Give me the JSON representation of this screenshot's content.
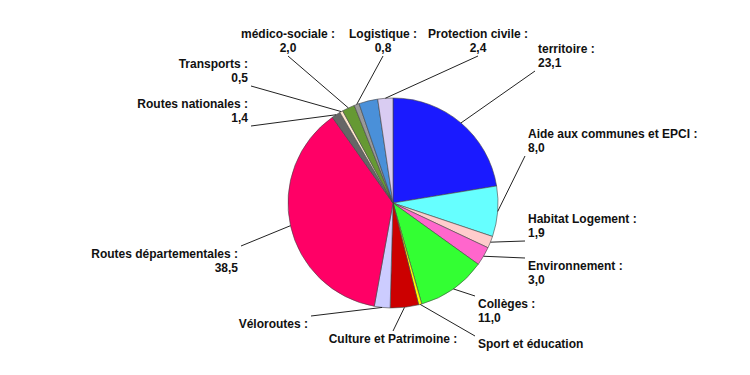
{
  "chart_data": {
    "type": "pie",
    "categories": [
      "territoire :",
      "Aide aux communes et EPCI :",
      "Habitat Logement :",
      "Environnement :",
      "Collèges :",
      "Sport et éducation",
      "Culture et Patrimoine :",
      "Véloroutes :",
      "Routes départementales :",
      "Routes nationales :",
      "Transports :",
      "médico-sociale :",
      "Logistique :",
      null,
      "Protection civile :"
    ],
    "values": [
      23.1,
      8.0,
      1.9,
      3.0,
      11.0,
      0.5,
      4.5,
      2.5,
      38.5,
      1.4,
      0.5,
      2.0,
      0.8,
      3.0,
      2.4
    ],
    "value_labels": [
      "23,1",
      "8,0",
      "1,9",
      "3,0",
      "11,0",
      null,
      null,
      null,
      "38,5",
      "1,4",
      "0,5",
      "2,0",
      "0,8",
      null,
      "2,4"
    ],
    "colors": [
      "#1a1aff",
      "#66ffff",
      "#ffcccc",
      "#ff66cc",
      "#33ff33",
      "#ffff00",
      "#cc0000",
      "#ccccff",
      "#ff0066",
      "#666666",
      "#ffe6cc",
      "#669933",
      "#999999",
      "#4a90d9",
      "#d9ccf2"
    ],
    "data_labels": true
  }
}
